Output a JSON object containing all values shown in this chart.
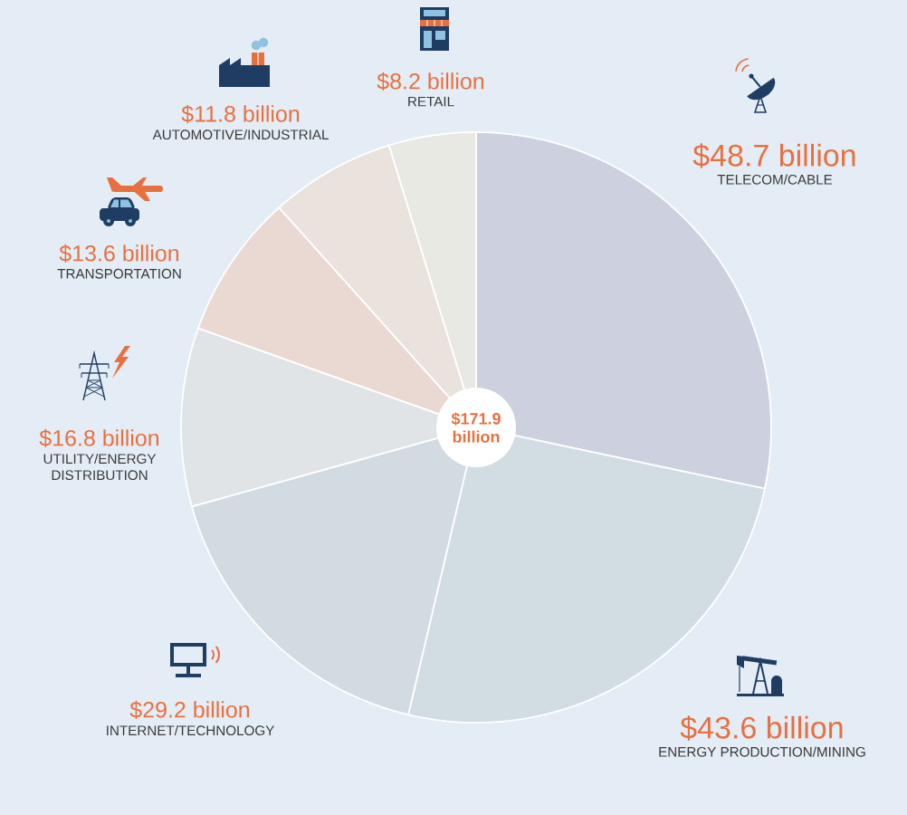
{
  "chart_data": {
    "type": "pie",
    "categories": [
      "TELECOM/CABLE",
      "ENERGY PRODUCTION/MINING",
      "INTERNET/TECHNOLOGY",
      "UTILITY/ENERGY DISTRIBUTION",
      "TRANSPORTATION",
      "AUTOMOTIVE/INDUSTRIAL",
      "RETAIL"
    ],
    "values": [
      48.7,
      43.6,
      29.2,
      16.8,
      13.6,
      11.8,
      8.2
    ],
    "value_labels": [
      "$48.7 billion",
      "$43.6 billion",
      "$29.2 billion",
      "$16.8 billion",
      "$13.6 billion",
      "$11.8 billion",
      "$8.2 billion"
    ],
    "colors": [
      "#cdd1df",
      "#d2dce3",
      "#d3dbe2",
      "#e1e4e6",
      "#ead9d3",
      "#e9e2dd",
      "#e9e9e3"
    ],
    "annotations": [
      "$171.9 billion"
    ]
  }
}
